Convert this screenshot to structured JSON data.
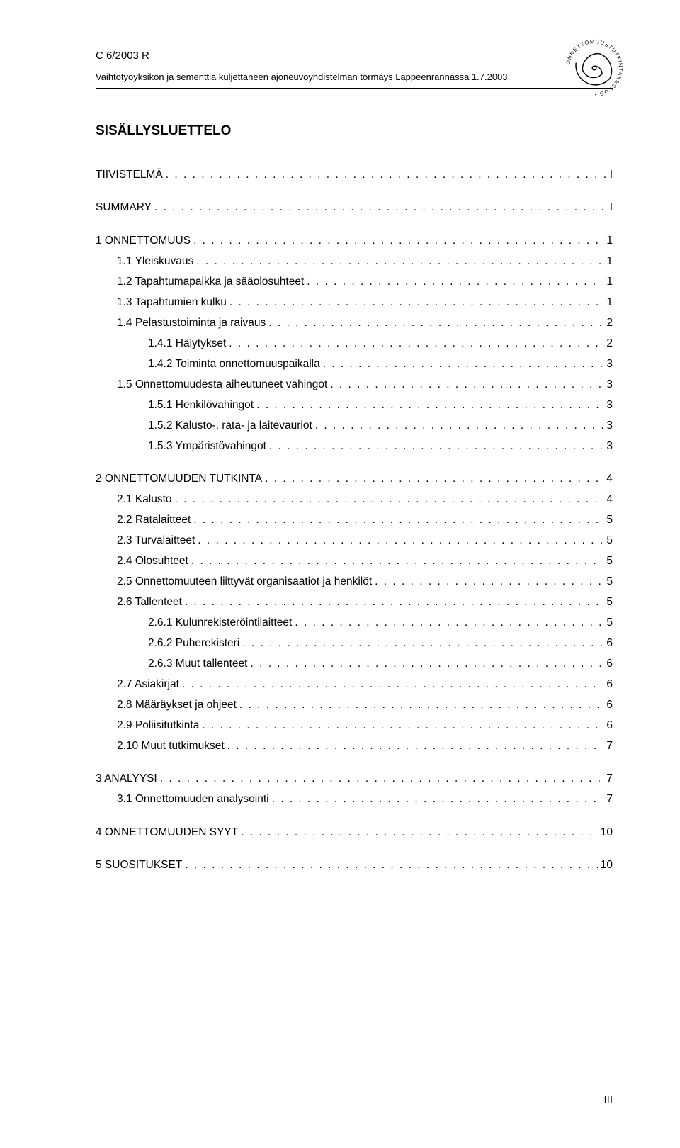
{
  "header": {
    "code": "C 6/2003 R",
    "subtitle": "Vaihtotyöyksikön ja sementtiä kuljettaneen ajoneuvoyhdistelmän törmäys Lappeenrannassa 1.7.2003"
  },
  "logo": {
    "outer_text_top": "ONNETTOMUUSTUTKINTAKESKUS",
    "color": "#000000"
  },
  "toc_title": "SISÄLLYSLUETTELO",
  "toc": [
    {
      "level": 1,
      "top": true,
      "label": "TIIVISTELMÄ",
      "page": "I"
    },
    {
      "level": 1,
      "top": true,
      "label": "SUMMARY",
      "page": "I"
    },
    {
      "level": 1,
      "top": true,
      "label": "1 ONNETTOMUUS",
      "page": "1"
    },
    {
      "level": 2,
      "top": false,
      "label": "1.1 Yleiskuvaus",
      "page": "1"
    },
    {
      "level": 2,
      "top": false,
      "label": "1.2 Tapahtumapaikka ja sääolosuhteet",
      "page": "1"
    },
    {
      "level": 2,
      "top": false,
      "label": "1.3 Tapahtumien kulku",
      "page": "1"
    },
    {
      "level": 2,
      "top": false,
      "label": "1.4 Pelastustoiminta ja raivaus",
      "page": "2"
    },
    {
      "level": 3,
      "top": false,
      "label": "1.4.1 Hälytykset",
      "page": "2"
    },
    {
      "level": 3,
      "top": false,
      "label": "1.4.2 Toiminta onnettomuuspaikalla",
      "page": "3"
    },
    {
      "level": 2,
      "top": false,
      "label": "1.5 Onnettomuudesta aiheutuneet vahingot",
      "page": "3"
    },
    {
      "level": 3,
      "top": false,
      "label": "1.5.1 Henkilövahingot",
      "page": "3"
    },
    {
      "level": 3,
      "top": false,
      "label": "1.5.2 Kalusto-, rata- ja laitevauriot",
      "page": "3"
    },
    {
      "level": 3,
      "top": false,
      "label": "1.5.3 Ympäristövahingot",
      "page": "3"
    },
    {
      "level": 1,
      "top": true,
      "label": "2 ONNETTOMUUDEN TUTKINTA",
      "page": "4"
    },
    {
      "level": 2,
      "top": false,
      "label": "2.1 Kalusto",
      "page": "4"
    },
    {
      "level": 2,
      "top": false,
      "label": "2.2 Ratalaitteet",
      "page": "5"
    },
    {
      "level": 2,
      "top": false,
      "label": "2.3 Turvalaitteet",
      "page": "5"
    },
    {
      "level": 2,
      "top": false,
      "label": "2.4 Olosuhteet",
      "page": "5"
    },
    {
      "level": 2,
      "top": false,
      "label": "2.5 Onnettomuuteen liittyvät organisaatiot ja henkilöt",
      "page": "5"
    },
    {
      "level": 2,
      "top": false,
      "label": "2.6 Tallenteet",
      "page": "5"
    },
    {
      "level": 3,
      "top": false,
      "label": "2.6.1 Kulunrekisteröintilaitteet",
      "page": "5"
    },
    {
      "level": 3,
      "top": false,
      "label": "2.6.2 Puherekisteri",
      "page": "6"
    },
    {
      "level": 3,
      "top": false,
      "label": "2.6.3 Muut tallenteet",
      "page": "6"
    },
    {
      "level": 2,
      "top": false,
      "label": "2.7 Asiakirjat",
      "page": "6"
    },
    {
      "level": 2,
      "top": false,
      "label": "2.8 Määräykset ja ohjeet",
      "page": "6"
    },
    {
      "level": 2,
      "top": false,
      "label": "2.9 Poliisitutkinta",
      "page": "6"
    },
    {
      "level": 2,
      "top": false,
      "label": "2.10 Muut tutkimukset",
      "page": "7"
    },
    {
      "level": 1,
      "top": true,
      "label": "3 ANALYYSI",
      "page": "7"
    },
    {
      "level": 2,
      "top": false,
      "label": "3.1 Onnettomuuden analysointi",
      "page": "7"
    },
    {
      "level": 1,
      "top": true,
      "label": "4 ONNETTOMUUDEN SYYT",
      "page": "10"
    },
    {
      "level": 1,
      "top": true,
      "label": "5 SUOSITUKSET",
      "page": "10"
    }
  ],
  "footer": {
    "page_number": "III"
  }
}
